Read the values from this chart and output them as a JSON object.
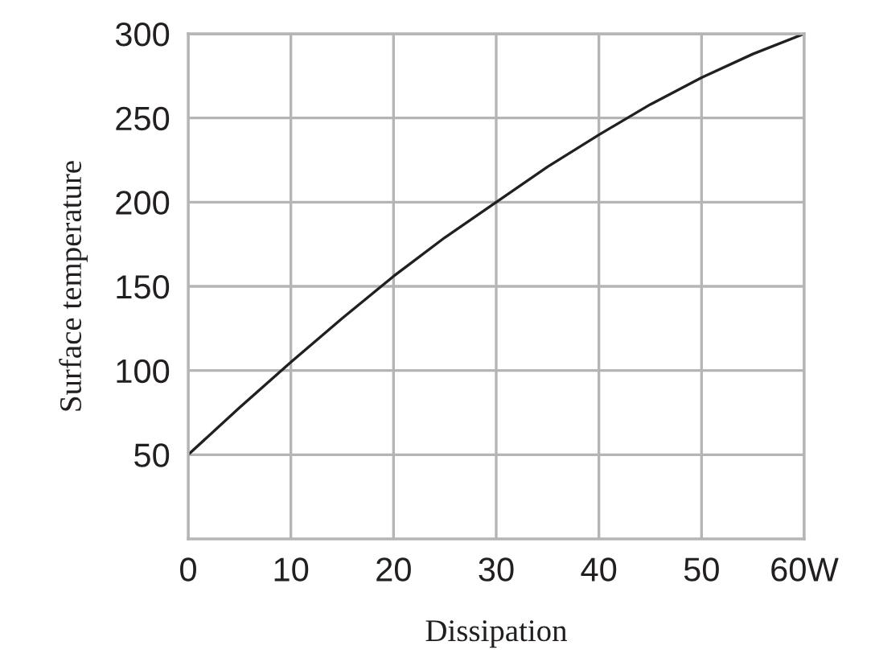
{
  "chart_data": {
    "type": "line",
    "xlabel": "Dissipation",
    "ylabel": "Surface temperature",
    "x": [
      0,
      5,
      10,
      15,
      20,
      25,
      30,
      35,
      40,
      45,
      50,
      55,
      60
    ],
    "series": [
      {
        "color": "#231f20",
        "values": [
          50,
          78,
          105,
          131,
          156,
          179,
          200,
          221,
          240,
          258,
          274,
          288,
          300
        ]
      }
    ],
    "xlim": [
      0,
      60
    ],
    "ylim": [
      0,
      300
    ],
    "xticks": [
      0,
      10,
      20,
      30,
      40,
      50,
      {
        "value": 60,
        "label": "60W"
      }
    ],
    "yticks": [
      50,
      100,
      150,
      200,
      250,
      300
    ],
    "grid": true,
    "marker": "none",
    "line_style": "solid"
  }
}
